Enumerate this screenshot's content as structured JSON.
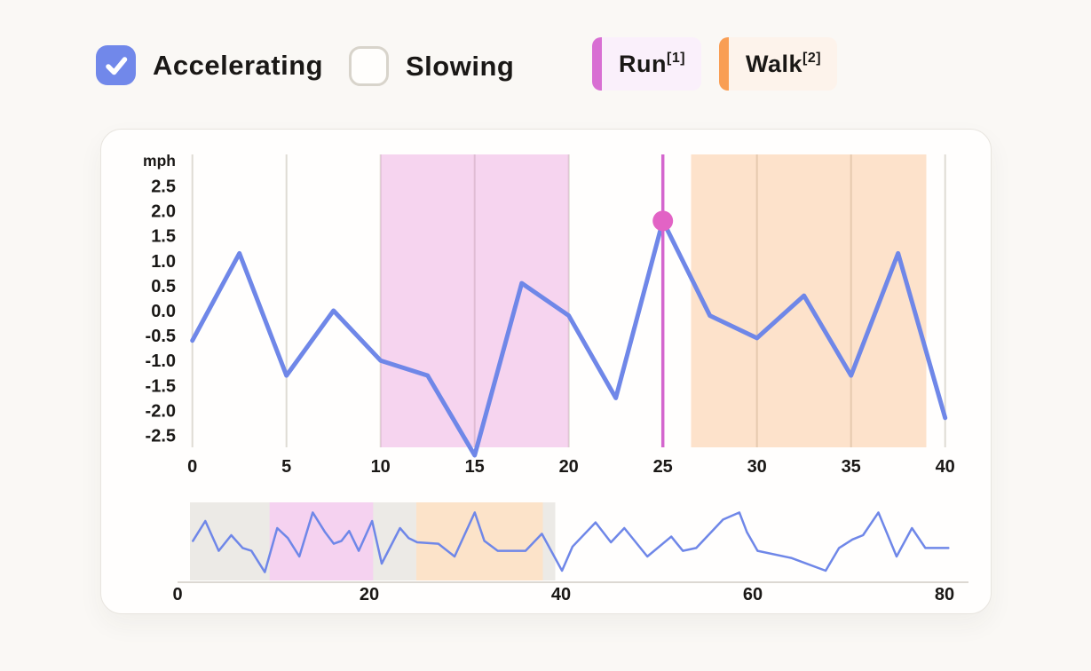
{
  "controls": {
    "accelerating": {
      "label": "Accelerating",
      "checked": true
    },
    "slowing": {
      "label": "Slowing",
      "checked": false
    },
    "legend": {
      "run": {
        "label": "Run",
        "superscript": "[1]"
      },
      "walk": {
        "label": "Walk",
        "superscript": "[2]"
      }
    }
  },
  "colors": {
    "pageBg": "#faf8f5",
    "cardBg": "#fffefd",
    "text": "#1a1816",
    "accentBlue": "#7188ea",
    "lineBlue": "#6f87e8",
    "grid": "#dfdbd4",
    "runBar": "#d86fd3",
    "runBg": "#faf0fb",
    "walkBar": "#f99e54",
    "walkBg": "#fdf3eb",
    "runRegionFill": "rgba(227,124,211,0.32)",
    "walkRegionFill": "rgba(248,162,88,0.30)",
    "brushGray": "#eceae6",
    "brushPink": "#f5d2f0",
    "brushOrange": "#fce3c9",
    "ruler": "#d466ce",
    "dot": "#e263c5",
    "baseline": "#dcd8d2"
  },
  "chart_data": [
    {
      "type": "line",
      "name": "speed-detail",
      "ylabel": "mph",
      "xlim": [
        0,
        40
      ],
      "ylim": [
        -2.75,
        3.1
      ],
      "grid": true,
      "x_ticks": [
        {
          "label": "0",
          "v": 0
        },
        {
          "label": "5",
          "v": 5
        },
        {
          "label": "10",
          "v": 10
        },
        {
          "label": "15",
          "v": 15
        },
        {
          "label": "20",
          "v": 20
        },
        {
          "label": "25",
          "v": 25
        },
        {
          "label": "30",
          "v": 30
        },
        {
          "label": "35",
          "v": 35
        },
        {
          "label": "40",
          "v": 40
        }
      ],
      "y_ticks": [
        {
          "label": "2.5",
          "v": 2.5
        },
        {
          "label": "2.0",
          "v": 2.0
        },
        {
          "label": "1.5",
          "v": 1.5
        },
        {
          "label": "1.0",
          "v": 1.0
        },
        {
          "label": "0.5",
          "v": 0.5
        },
        {
          "label": "0.0",
          "v": 0.0
        },
        {
          "label": "-0.5",
          "v": -0.5
        },
        {
          "label": "-1.0",
          "v": -1.0
        },
        {
          "label": "-1.5",
          "v": -1.5
        },
        {
          "label": "-2.0",
          "v": -2.0
        },
        {
          "label": "-2.5",
          "v": -2.5
        }
      ],
      "x": [
        0,
        2.5,
        5,
        7.5,
        10,
        12.5,
        15,
        17.5,
        20,
        22.5,
        25,
        27.5,
        30,
        32.5,
        35,
        37.5,
        40
      ],
      "values": [
        -0.6,
        1.15,
        -1.3,
        0.0,
        -1.0,
        -1.3,
        -2.9,
        0.55,
        -0.1,
        -1.75,
        1.8,
        -0.1,
        -0.55,
        0.3,
        -1.3,
        1.15,
        -2.15
      ],
      "regions": [
        {
          "label": "Run",
          "from": 10,
          "to": 20
        },
        {
          "label": "Walk",
          "from": 26.5,
          "to": 39
        }
      ],
      "ruler": {
        "x": 25,
        "value": 1.8
      }
    },
    {
      "type": "line",
      "name": "speed-overview",
      "xlim": [
        0,
        80
      ],
      "ylim": [
        -3.2,
        2.3
      ],
      "grid": false,
      "x_ticks": [
        {
          "label": "0",
          "v": 0
        },
        {
          "label": "20",
          "v": 20
        },
        {
          "label": "40",
          "v": 40
        },
        {
          "label": "60",
          "v": 60
        },
        {
          "label": "80",
          "v": 80
        }
      ],
      "points": [
        [
          1.6,
          -0.4
        ],
        [
          2.9,
          1.0
        ],
        [
          4.3,
          -1.1
        ],
        [
          5.6,
          0.0
        ],
        [
          6.8,
          -0.9
        ],
        [
          7.7,
          -1.1
        ],
        [
          9.1,
          -2.6
        ],
        [
          10.4,
          0.5
        ],
        [
          11.5,
          -0.2
        ],
        [
          12.7,
          -1.5
        ],
        [
          14.1,
          1.6
        ],
        [
          15.4,
          0.2
        ],
        [
          16.3,
          -0.6
        ],
        [
          17.1,
          -0.4
        ],
        [
          17.9,
          0.3
        ],
        [
          18.9,
          -1.1
        ],
        [
          20.3,
          1.0
        ],
        [
          21.3,
          -2.0
        ],
        [
          23.2,
          0.5
        ],
        [
          24.1,
          -0.2
        ],
        [
          25.0,
          -0.5
        ],
        [
          27.2,
          -0.6
        ],
        [
          28.9,
          -1.5
        ],
        [
          31.0,
          1.6
        ],
        [
          32.0,
          -0.4
        ],
        [
          33.4,
          -1.1
        ],
        [
          36.3,
          -1.1
        ],
        [
          38.0,
          0.1
        ],
        [
          40.1,
          -2.5
        ],
        [
          41.2,
          -0.8
        ],
        [
          43.6,
          0.9
        ],
        [
          45.2,
          -0.5
        ],
        [
          46.6,
          0.5
        ],
        [
          49.0,
          -1.5
        ],
        [
          51.5,
          -0.1
        ],
        [
          52.7,
          -1.1
        ],
        [
          54.1,
          -0.9
        ],
        [
          56.9,
          1.1
        ],
        [
          58.6,
          1.6
        ],
        [
          59.4,
          0.2
        ],
        [
          60.5,
          -1.1
        ],
        [
          64.0,
          -1.6
        ],
        [
          67.6,
          -2.5
        ],
        [
          69.0,
          -0.9
        ],
        [
          70.4,
          -0.3
        ],
        [
          71.5,
          0.0
        ],
        [
          73.1,
          1.6
        ],
        [
          75.0,
          -1.5
        ],
        [
          76.6,
          0.5
        ],
        [
          78.0,
          -0.9
        ],
        [
          80.4,
          -0.9
        ]
      ],
      "bands": [
        {
          "name": "window",
          "from": 1.3,
          "to": 39.4
        },
        {
          "name": "run",
          "from": 9.6,
          "to": 20.4
        },
        {
          "name": "walk",
          "from": 24.9,
          "to": 38.1
        }
      ]
    }
  ]
}
